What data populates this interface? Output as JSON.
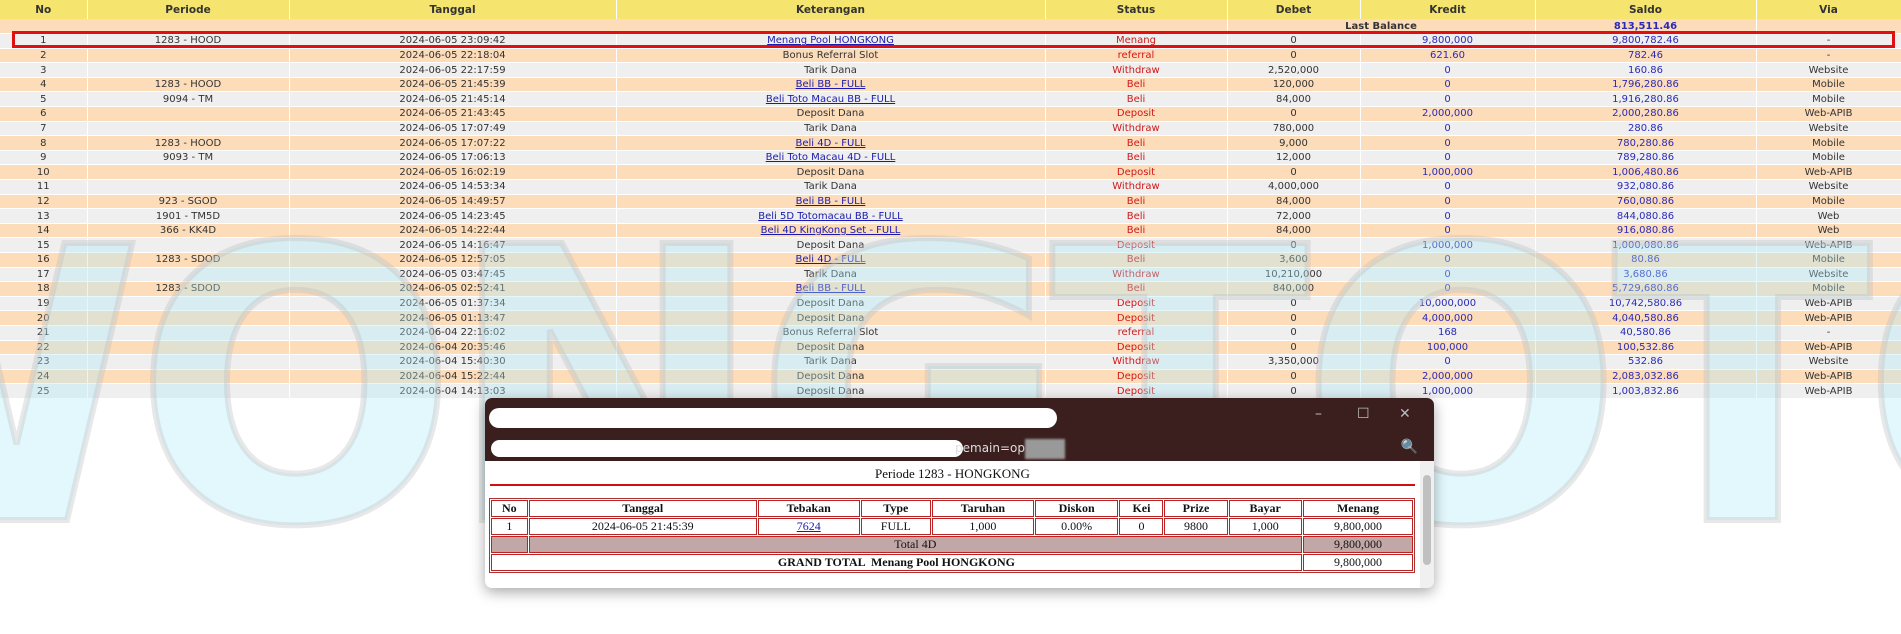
{
  "watermark": "WONGTOTO",
  "columns": [
    "No",
    "Periode",
    "Tanggal",
    "Keterangan",
    "Status",
    "Debet",
    "Kredit",
    "Saldo",
    "Via"
  ],
  "last_balance": {
    "label": "Last Balance",
    "value": "813,511.46"
  },
  "rows": [
    [
      "1",
      "1283 - HOOD",
      "2024-06-05 23:09:42",
      "Menang Pool HONGKONG",
      true,
      "Menang",
      "0",
      "9,800,000",
      "9,800,782.46",
      "-"
    ],
    [
      "2",
      "",
      "2024-06-05 22:18:04",
      "Bonus Referral Slot",
      false,
      "referral",
      "0",
      "621.60",
      "782.46",
      "-"
    ],
    [
      "3",
      "",
      "2024-06-05 22:17:59",
      "Tarik Dana",
      false,
      "Withdraw",
      "2,520,000",
      "0",
      "160.86",
      "Website"
    ],
    [
      "4",
      "1283 - HOOD",
      "2024-06-05 21:45:39",
      "Beli BB - FULL",
      true,
      "Beli",
      "120,000",
      "0",
      "1,796,280.86",
      "Mobile"
    ],
    [
      "5",
      "9094 - TM",
      "2024-06-05 21:45:14",
      "Beli Toto Macau BB - FULL",
      true,
      "Beli",
      "84,000",
      "0",
      "1,916,280.86",
      "Mobile"
    ],
    [
      "6",
      "",
      "2024-06-05 21:43:45",
      "Deposit Dana",
      false,
      "Deposit",
      "0",
      "2,000,000",
      "2,000,280.86",
      "Web-APIB"
    ],
    [
      "7",
      "",
      "2024-06-05 17:07:49",
      "Tarik Dana",
      false,
      "Withdraw",
      "780,000",
      "0",
      "280.86",
      "Website"
    ],
    [
      "8",
      "1283 - HOOD",
      "2024-06-05 17:07:22",
      "Beli 4D - FULL",
      true,
      "Beli",
      "9,000",
      "0",
      "780,280.86",
      "Mobile"
    ],
    [
      "9",
      "9093 - TM",
      "2024-06-05 17:06:13",
      "Beli Toto Macau 4D - FULL",
      true,
      "Beli",
      "12,000",
      "0",
      "789,280.86",
      "Mobile"
    ],
    [
      "10",
      "",
      "2024-06-05 16:02:19",
      "Deposit Dana",
      false,
      "Deposit",
      "0",
      "1,000,000",
      "1,006,480.86",
      "Web-APIB"
    ],
    [
      "11",
      "",
      "2024-06-05 14:53:34",
      "Tarik Dana",
      false,
      "Withdraw",
      "4,000,000",
      "0",
      "932,080.86",
      "Website"
    ],
    [
      "12",
      "923 - SGOD",
      "2024-06-05 14:49:57",
      "Beli BB - FULL",
      true,
      "Beli",
      "84,000",
      "0",
      "760,080.86",
      "Mobile"
    ],
    [
      "13",
      "1901 - TM5D",
      "2024-06-05 14:23:45",
      "Beli 5D Totomacau BB - FULL",
      true,
      "Beli",
      "72,000",
      "0",
      "844,080.86",
      "Web"
    ],
    [
      "14",
      "366 - KK4D",
      "2024-06-05 14:22:44",
      "Beli 4D KingKong Set - FULL",
      true,
      "Beli",
      "84,000",
      "0",
      "916,080.86",
      "Web"
    ],
    [
      "15",
      "",
      "2024-06-05 14:16:47",
      "Deposit Dana",
      false,
      "Deposit",
      "0",
      "1,000,000",
      "1,000,080.86",
      "Web-APIB"
    ],
    [
      "16",
      "1283 - SDOD",
      "2024-06-05 12:57:05",
      "Beli 4D - FULL",
      true,
      "Beli",
      "3,600",
      "0",
      "80.86",
      "Mobile"
    ],
    [
      "17",
      "",
      "2024-06-05 03:47:45",
      "Tarik Dana",
      false,
      "Withdraw",
      "10,210,000",
      "0",
      "3,680.86",
      "Website"
    ],
    [
      "18",
      "1283 - SDOD",
      "2024-06-05 02:52:41",
      "Beli BB - FULL",
      true,
      "Beli",
      "840,000",
      "0",
      "5,729,680.86",
      "Mobile"
    ],
    [
      "19",
      "",
      "2024-06-05 01:37:34",
      "Deposit Dana",
      false,
      "Deposit",
      "0",
      "10,000,000",
      "10,742,580.86",
      "Web-APIB"
    ],
    [
      "20",
      "",
      "2024-06-05 01:13:47",
      "Deposit Dana",
      false,
      "Deposit",
      "0",
      "4,000,000",
      "4,040,580.86",
      "Web-APIB"
    ],
    [
      "21",
      "",
      "2024-06-04 22:16:02",
      "Bonus Referral Slot",
      false,
      "referral",
      "0",
      "168",
      "40,580.86",
      "-"
    ],
    [
      "22",
      "",
      "2024-06-04 20:35:46",
      "Deposit Dana",
      false,
      "Deposit",
      "0",
      "100,000",
      "100,532.86",
      "Web-APIB"
    ],
    [
      "23",
      "",
      "2024-06-04 15:40:30",
      "Tarik Dana",
      false,
      "Withdraw",
      "3,350,000",
      "0",
      "532.86",
      "Website"
    ],
    [
      "24",
      "",
      "2024-06-04 15:22:44",
      "Deposit Dana",
      false,
      "Deposit",
      "0",
      "2,000,000",
      "2,083,032.86",
      "Web-APIB"
    ],
    [
      "25",
      "",
      "2024-06-04 14:13:03",
      "Deposit Dana",
      false,
      "Deposit",
      "0",
      "1,000,000",
      "1,003,832.86",
      "Web-APIB"
    ]
  ],
  "popup": {
    "url_fragment": "pemain=op",
    "window_buttons": {
      "minimize": "–",
      "maximize": "☐",
      "close": "✕"
    },
    "zoom_icon": "🔍",
    "title": "Periode 1283 - HONGKONG",
    "headers": [
      "No",
      "Tanggal",
      "Tebakan",
      "Type",
      "Taruhan",
      "Diskon",
      "Kei",
      "Prize",
      "Bayar",
      "Menang"
    ],
    "row": [
      "1",
      "2024-06-05 21:45:39",
      "7624",
      "FULL",
      "1,000",
      "0.00%",
      "0",
      "9800",
      "1,000",
      "9,800,000"
    ],
    "total_label": "Total 4D",
    "total_value": "9,800,000",
    "grand_label": "GRAND TOTAL  Menang Pool HONGKONG",
    "grand_value": "9,800,000"
  }
}
